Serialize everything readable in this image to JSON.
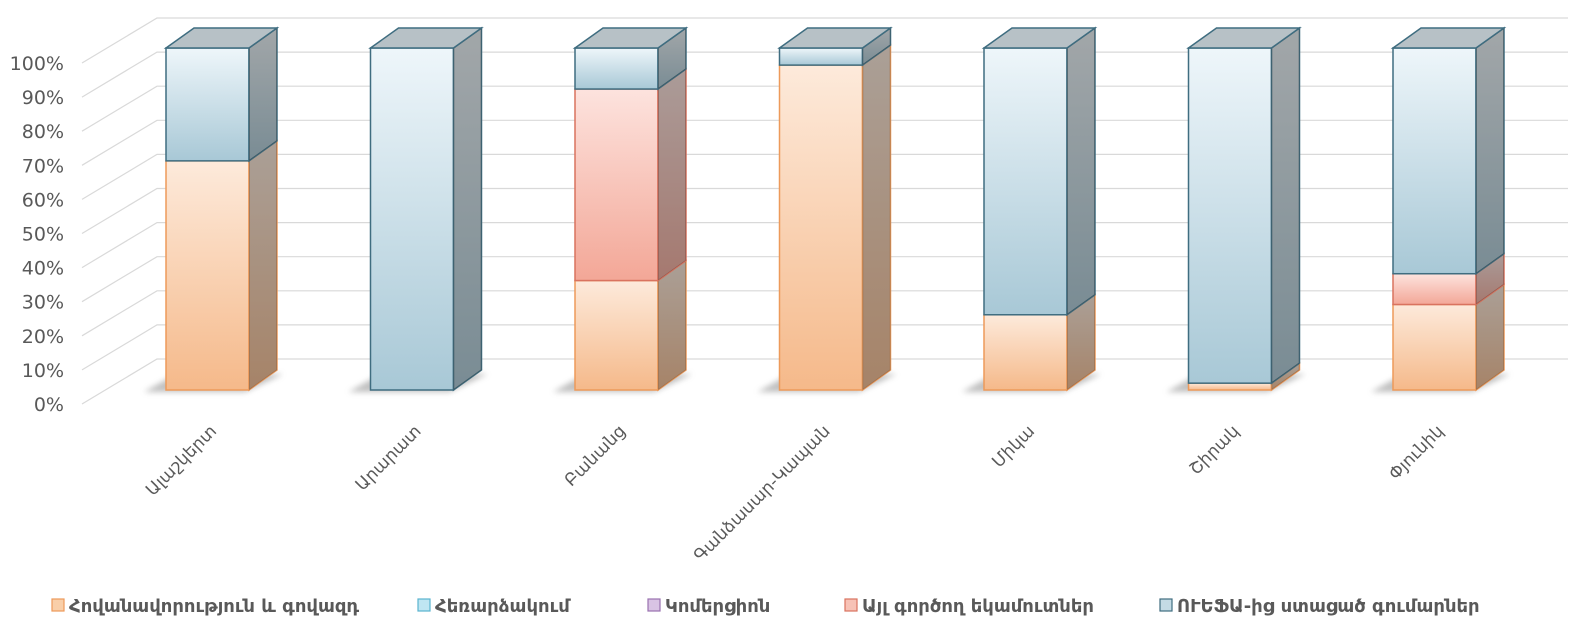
{
  "chart_data": {
    "type": "bar",
    "stacked": "percent",
    "three_d": true,
    "categories": [
      "Ալաշկերտ",
      "Արարատ",
      "Բանանց",
      "Գանձասար-Կապան",
      "Միկա",
      "Շիրակ",
      "Փյունիկ"
    ],
    "series": [
      {
        "name": "Հովանավորություն և գովազդ",
        "values": [
          67,
          0,
          32,
          95,
          22,
          2,
          25
        ],
        "color": "#f4b183"
      },
      {
        "name": "Հեռարձակում",
        "values": [
          0,
          0,
          0,
          0,
          0,
          0,
          0
        ],
        "color": "#9dd7e8"
      },
      {
        "name": "Կոմերցիոն",
        "values": [
          0,
          0,
          0,
          0,
          0,
          0,
          0
        ],
        "color": "#c5a6d4"
      },
      {
        "name": "Այլ գործող եկամուտներ",
        "values": [
          0,
          0,
          56,
          0,
          0,
          0,
          9
        ],
        "color": "#f4a090"
      },
      {
        "name": "ՈՒԵՖԱ-ից ստացած գումարներ",
        "values": [
          33,
          100,
          12,
          5,
          78,
          98,
          66
        ],
        "color": "#a9cad8"
      }
    ],
    "y_ticks": [
      "0%",
      "10%",
      "20%",
      "30%",
      "40%",
      "50%",
      "60%",
      "70%",
      "80%",
      "90%",
      "100%"
    ],
    "ylim": [
      0,
      100
    ],
    "grid": true,
    "legend_position": "bottom"
  }
}
